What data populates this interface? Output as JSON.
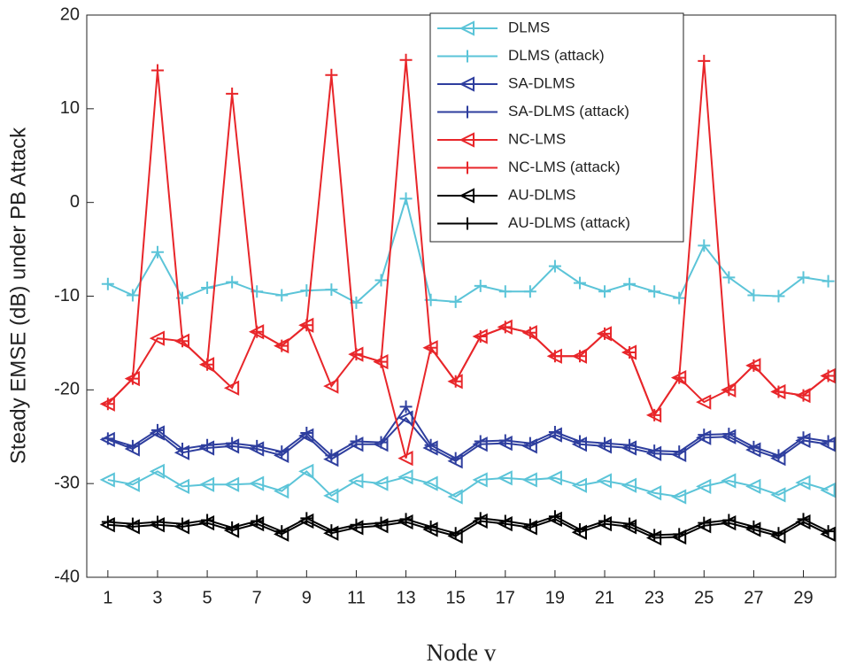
{
  "chart_data": {
    "type": "line",
    "x_label": "Node v",
    "y_label": "Steady EMSE (dB) under PB Attack",
    "x": [
      1,
      2,
      3,
      4,
      5,
      6,
      7,
      8,
      9,
      10,
      11,
      12,
      13,
      14,
      15,
      16,
      17,
      18,
      19,
      20,
      21,
      22,
      23,
      24,
      25,
      26,
      27,
      28,
      29,
      30
    ],
    "xlim": [
      0.15,
      30.3
    ],
    "xticks": [
      1,
      3,
      5,
      7,
      9,
      11,
      13,
      15,
      17,
      19,
      21,
      23,
      25,
      27,
      29
    ],
    "ylim": [
      -40,
      20
    ],
    "yticks": [
      -40,
      -30,
      -20,
      -10,
      0,
      10,
      20
    ],
    "legend": "top-right",
    "series": [
      {
        "name": "DLMS",
        "color": "#5bc4d8",
        "marker": "triangle-left",
        "values": [
          -29.6,
          -30.1,
          -28.7,
          -30.3,
          -30.1,
          -30.1,
          -30,
          -30.8,
          -28.7,
          -31.3,
          -29.7,
          -30,
          -29.3,
          -30,
          -31.4,
          -29.6,
          -29.4,
          -29.6,
          -29.4,
          -30.2,
          -29.7,
          -30.2,
          -31,
          -31.4,
          -30.3,
          -29.7,
          -30.3,
          -31.2,
          -29.9,
          -30.7
        ]
      },
      {
        "name": "DLMS (attack)",
        "color": "#5bc4d8",
        "marker": "plus",
        "values": [
          -8.7,
          -9.9,
          -5.3,
          -10.2,
          -9.1,
          -8.5,
          -9.5,
          -9.9,
          -9.4,
          -9.3,
          -10.7,
          -8.3,
          0.4,
          -10.4,
          -10.6,
          -8.9,
          -9.5,
          -9.5,
          -6.8,
          -8.6,
          -9.5,
          -8.7,
          -9.5,
          -10.2,
          -4.6,
          -8,
          -9.9,
          -10,
          -8,
          -8.4
        ]
      },
      {
        "name": "SA-DLMS",
        "color": "#2e3e9e",
        "marker": "triangle-left",
        "values": [
          -25.3,
          -26.3,
          -24.6,
          -26.7,
          -26.2,
          -26,
          -26.3,
          -27,
          -24.9,
          -27.4,
          -25.8,
          -25.8,
          -23,
          -26.2,
          -27.6,
          -25.8,
          -25.7,
          -26,
          -24.8,
          -25.8,
          -26,
          -26.2,
          -26.8,
          -26.9,
          -25.1,
          -25,
          -26.4,
          -27.3,
          -25.4,
          -25.8
        ]
      },
      {
        "name": "SA-DLMS (attack)",
        "color": "#2e3e9e",
        "marker": "plus",
        "values": [
          -25.2,
          -26,
          -24.3,
          -26.3,
          -25.9,
          -25.7,
          -26,
          -26.6,
          -24.6,
          -27,
          -25.5,
          -25.6,
          -21.8,
          -25.9,
          -27.3,
          -25.5,
          -25.4,
          -25.7,
          -24.5,
          -25.5,
          -25.7,
          -25.9,
          -26.5,
          -26.6,
          -24.8,
          -24.7,
          -26.1,
          -27,
          -25.1,
          -25.5
        ]
      },
      {
        "name": "NC-LMS",
        "color": "#e8262a",
        "marker": "triangle-left",
        "values": [
          -21.5,
          -18.8,
          -14.5,
          -14.8,
          -17.3,
          -19.8,
          -13.8,
          -15.3,
          -13.1,
          -19.6,
          -16.2,
          -17,
          -27.3,
          -15.5,
          -19.1,
          -14.3,
          -13.3,
          -13.9,
          -16.4,
          -16.4,
          -14,
          -16,
          -22.7,
          -18.7,
          -21.3,
          -20,
          -17.4,
          -20.2,
          -20.6,
          -18.5
        ]
      },
      {
        "name": "NC-LMS (attack)",
        "color": "#e8262a",
        "marker": "plus",
        "values": [
          -21.5,
          -18.8,
          14.1,
          -14.8,
          -17.3,
          11.6,
          -13.8,
          -15.3,
          -13.1,
          13.6,
          -16.2,
          -17,
          15.2,
          -15.5,
          -19.1,
          -14.3,
          -13.3,
          -13.9,
          -16.4,
          -16.4,
          -14,
          -16,
          -22.7,
          -18.7,
          15.1,
          -20,
          -17.4,
          -20.2,
          -20.6,
          -18.5
        ]
      },
      {
        "name": "AU-DLMS",
        "color": "#000000",
        "marker": "triangle-left",
        "values": [
          -34.4,
          -34.6,
          -34.4,
          -34.6,
          -34.2,
          -35,
          -34.3,
          -35.4,
          -34,
          -35.3,
          -34.7,
          -34.5,
          -34.1,
          -34.9,
          -35.6,
          -34,
          -34.3,
          -34.7,
          -33.8,
          -35.2,
          -34.3,
          -34.6,
          -35.8,
          -35.7,
          -34.5,
          -34.2,
          -34.9,
          -35.6,
          -34.1,
          -35.4
        ]
      },
      {
        "name": "AU-DLMS (attack)",
        "color": "#000000",
        "marker": "plus",
        "values": [
          -34.1,
          -34.3,
          -34.1,
          -34.3,
          -33.9,
          -34.7,
          -34,
          -35.1,
          -33.7,
          -35,
          -34.4,
          -34.2,
          -33.8,
          -34.6,
          -35.3,
          -33.7,
          -34,
          -34.4,
          -33.5,
          -34.9,
          -34,
          -34.3,
          -35.5,
          -35.4,
          -34.2,
          -33.9,
          -34.6,
          -35.3,
          -33.8,
          -35.1
        ]
      }
    ]
  }
}
